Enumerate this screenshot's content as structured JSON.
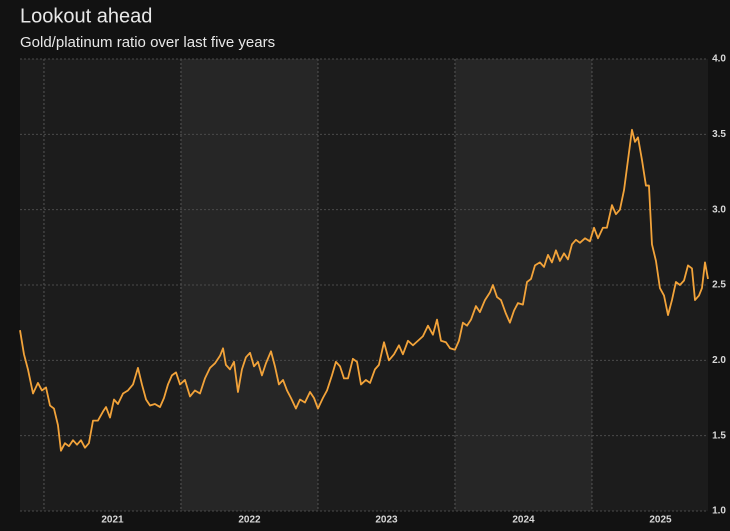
{
  "chart_data": {
    "type": "line",
    "title": "Lookout ahead",
    "subtitle": "Gold/platinum ratio over last five years",
    "x": [
      2020.825,
      2020.854,
      2020.883,
      2020.92,
      2020.956,
      2020.985,
      2021.015,
      2021.044,
      2021.073,
      2021.102,
      2021.124,
      2021.153,
      2021.182,
      2021.212,
      2021.241,
      2021.27,
      2021.299,
      2021.328,
      2021.358,
      2021.394,
      2021.431,
      2021.453,
      2021.482,
      2021.511,
      2021.54,
      2021.577,
      2021.613,
      2021.65,
      2021.686,
      2021.715,
      2021.745,
      2021.774,
      2021.81,
      2021.847,
      2021.876,
      2021.905,
      2021.934,
      2021.964,
      2021.993,
      2022.029,
      2022.066,
      2022.102,
      2022.139,
      2022.175,
      2022.212,
      2022.248,
      2022.285,
      2022.307,
      2022.328,
      2022.358,
      2022.387,
      2022.416,
      2022.445,
      2022.474,
      2022.504,
      2022.533,
      2022.562,
      2022.591,
      2022.62,
      2022.657,
      2022.686,
      2022.715,
      2022.745,
      2022.774,
      2022.803,
      2022.839,
      2022.869,
      2022.905,
      2022.942,
      2022.971,
      2023.0,
      2023.036,
      2023.066,
      2023.102,
      2023.131,
      2023.161,
      2023.19,
      2023.219,
      2023.255,
      2023.285,
      2023.314,
      2023.35,
      2023.38,
      2023.416,
      2023.445,
      2023.482,
      2023.518,
      2023.555,
      2023.591,
      2023.62,
      2023.657,
      2023.693,
      2023.73,
      2023.766,
      2023.803,
      2023.839,
      2023.869,
      2023.898,
      2023.934,
      2023.964,
      2024.0,
      2024.029,
      2024.058,
      2024.088,
      2024.117,
      2024.153,
      2024.182,
      2024.219,
      2024.255,
      2024.277,
      2024.307,
      2024.336,
      2024.372,
      2024.401,
      2024.431,
      2024.46,
      2024.496,
      2024.526,
      2024.555,
      2024.584,
      2024.62,
      2024.65,
      2024.679,
      2024.708,
      2024.737,
      2024.766,
      2024.796,
      2024.825,
      2024.854,
      2024.883,
      2024.912,
      2024.949,
      2024.985,
      2025.015,
      2025.044,
      2025.08,
      2025.109,
      2025.146,
      2025.175,
      2025.204,
      2025.234,
      2025.263,
      2025.292,
      2025.314,
      2025.336,
      2025.365,
      2025.394,
      2025.416,
      2025.438,
      2025.467,
      2025.496,
      2025.526,
      2025.555,
      2025.584,
      2025.613,
      2025.642,
      2025.672,
      2025.701,
      2025.73,
      2025.752,
      2025.781,
      2025.803,
      2025.825,
      2025.847
    ],
    "series": [
      {
        "color": "#f2a33a",
        "values": [
          2.2,
          2.04,
          1.94,
          1.78,
          1.85,
          1.8,
          1.82,
          1.7,
          1.68,
          1.57,
          1.4,
          1.45,
          1.43,
          1.47,
          1.44,
          1.47,
          1.42,
          1.45,
          1.6,
          1.6,
          1.66,
          1.69,
          1.62,
          1.74,
          1.71,
          1.78,
          1.8,
          1.84,
          1.95,
          1.84,
          1.74,
          1.7,
          1.71,
          1.69,
          1.75,
          1.84,
          1.9,
          1.92,
          1.84,
          1.87,
          1.76,
          1.8,
          1.78,
          1.88,
          1.95,
          1.98,
          2.03,
          2.08,
          1.97,
          1.94,
          1.99,
          1.79,
          1.94,
          2.02,
          2.05,
          1.96,
          1.99,
          1.9,
          1.98,
          2.06,
          1.96,
          1.84,
          1.87,
          1.8,
          1.75,
          1.68,
          1.74,
          1.72,
          1.79,
          1.75,
          1.68,
          1.75,
          1.8,
          1.9,
          1.99,
          1.96,
          1.88,
          1.88,
          2.01,
          1.99,
          1.84,
          1.87,
          1.85,
          1.94,
          1.97,
          2.12,
          2.0,
          2.04,
          2.1,
          2.04,
          2.13,
          2.1,
          2.13,
          2.16,
          2.23,
          2.17,
          2.27,
          2.13,
          2.12,
          2.08,
          2.07,
          2.13,
          2.25,
          2.23,
          2.27,
          2.36,
          2.32,
          2.4,
          2.45,
          2.5,
          2.42,
          2.4,
          2.31,
          2.25,
          2.33,
          2.38,
          2.37,
          2.52,
          2.54,
          2.63,
          2.65,
          2.62,
          2.7,
          2.65,
          2.73,
          2.66,
          2.71,
          2.67,
          2.77,
          2.8,
          2.78,
          2.81,
          2.79,
          2.88,
          2.81,
          2.88,
          2.88,
          3.03,
          2.97,
          3.0,
          3.13,
          3.33,
          3.53,
          3.45,
          3.48,
          3.33,
          3.16,
          3.16,
          2.77,
          2.66,
          2.48,
          2.43,
          2.3,
          2.4,
          2.52,
          2.5,
          2.53,
          2.63,
          2.61,
          2.4,
          2.43,
          2.48,
          2.65,
          2.54
        ]
      }
    ],
    "xlim": [
      2020.825,
      2025.847
    ],
    "xticks": [
      {
        "value": 2021.5,
        "label": "2021"
      },
      {
        "value": 2022.5,
        "label": "2022"
      },
      {
        "value": 2023.5,
        "label": "2023"
      },
      {
        "value": 2024.5,
        "label": "2024"
      },
      {
        "value": 2025.5,
        "label": "2025"
      }
    ],
    "ylim": [
      1,
      4
    ],
    "yticks": [
      {
        "value": 1,
        "label": "1.0"
      },
      1.5,
      {
        "value": 2,
        "label": "2.0"
      },
      2.5,
      {
        "value": 3,
        "label": "3.0"
      },
      3.5,
      {
        "value": 4,
        "label": "4.0"
      }
    ],
    "grid": true
  }
}
